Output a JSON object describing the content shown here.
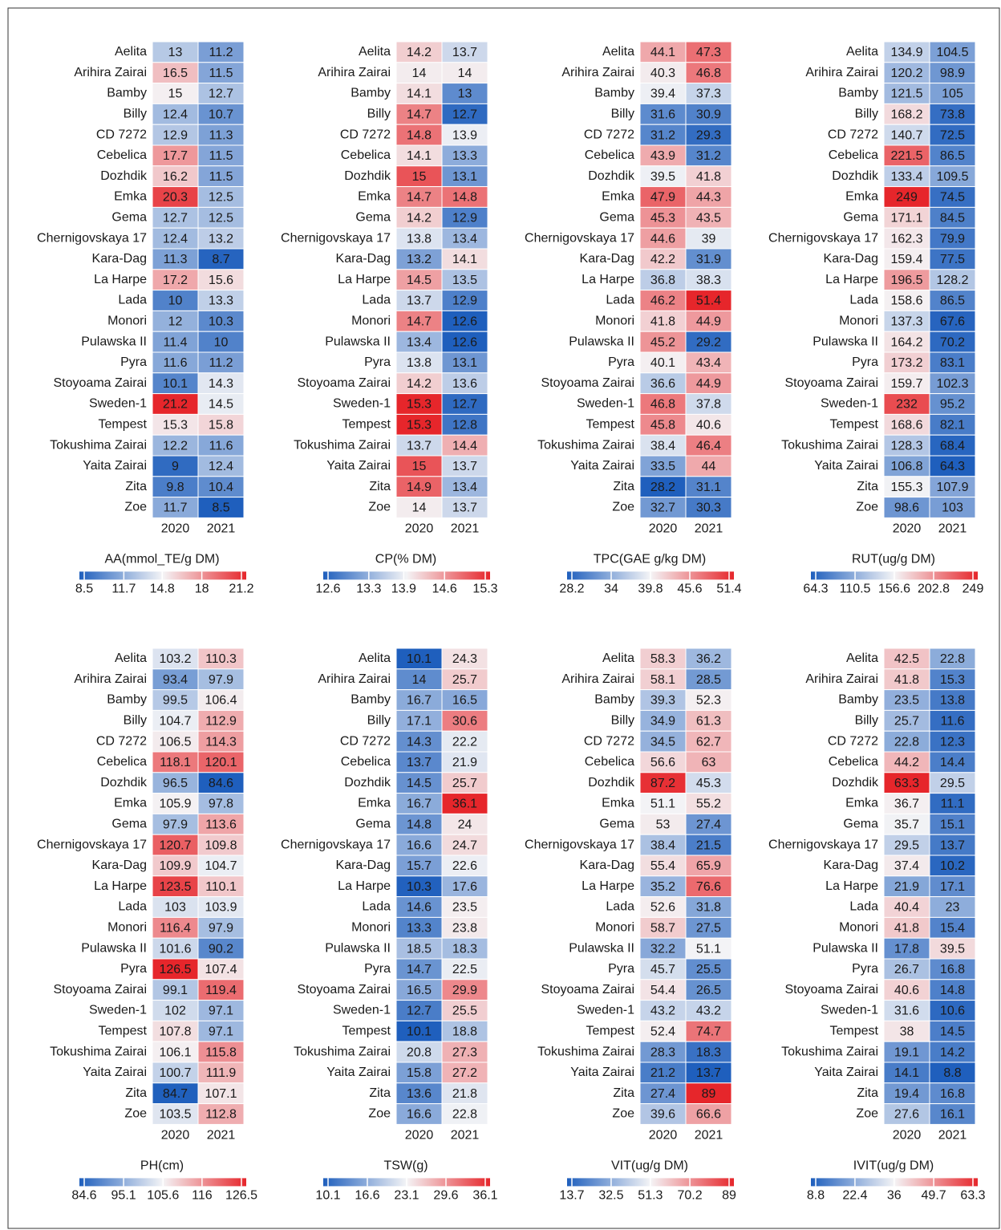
{
  "chart_data": [
    {
      "type": "heatmap",
      "title": "AA(mmol_TE/g DM)",
      "columns": [
        "2020",
        "2021"
      ],
      "rows": [
        "Aelita",
        "Arihira Zairai",
        "Bamby",
        "Billy",
        "CD 7272",
        "Cebelica",
        "Dozhdik",
        "Emka",
        "Gema",
        "Chernigovskaya 17",
        "Kara-Dag",
        "La Harpe",
        "Lada",
        "Monori",
        "Pulawska II",
        "Pyra",
        "Stoyoama Zairai",
        "Sweden-1",
        "Tempest",
        "Tokushima Zairai",
        "Yaita Zairai",
        "Zita",
        "Zoe"
      ],
      "values": [
        [
          13,
          11.2
        ],
        [
          16.5,
          11.5
        ],
        [
          15,
          12.7
        ],
        [
          12.4,
          10.7
        ],
        [
          12.9,
          11.3
        ],
        [
          17.7,
          11.5
        ],
        [
          16.2,
          11.5
        ],
        [
          20.3,
          12.5
        ],
        [
          12.7,
          12.5
        ],
        [
          12.4,
          13.2
        ],
        [
          11.3,
          8.7
        ],
        [
          17.2,
          15.6
        ],
        [
          10,
          13.3
        ],
        [
          12,
          10.3
        ],
        [
          11.4,
          10
        ],
        [
          11.6,
          11.2
        ],
        [
          10.1,
          14.3
        ],
        [
          21.2,
          14.5
        ],
        [
          15.3,
          15.8
        ],
        [
          12.2,
          11.6
        ],
        [
          9,
          12.4
        ],
        [
          9.8,
          10.4
        ],
        [
          11.7,
          8.5
        ]
      ],
      "clim": [
        8.5,
        21.2
      ],
      "cticks": [
        8.5,
        11.7,
        14.8,
        18,
        21.2
      ],
      "colormap": [
        "#1f5fbd",
        "#f4f4f6",
        "#e6262b"
      ]
    },
    {
      "type": "heatmap",
      "title": "CP(% DM)",
      "columns": [
        "2020",
        "2021"
      ],
      "rows": [
        "Aelita",
        "Arihira Zairai",
        "Bamby",
        "Billy",
        "CD 7272",
        "Cebelica",
        "Dozhdik",
        "Emka",
        "Gema",
        "Chernigovskaya 17",
        "Kara-Dag",
        "La Harpe",
        "Lada",
        "Monori",
        "Pulawska II",
        "Pyra",
        "Stoyoama Zairai",
        "Sweden-1",
        "Tempest",
        "Tokushima Zairai",
        "Yaita Zairai",
        "Zita",
        "Zoe"
      ],
      "values": [
        [
          14.2,
          13.7
        ],
        [
          14,
          14
        ],
        [
          14.1,
          13
        ],
        [
          14.7,
          12.7
        ],
        [
          14.8,
          13.9
        ],
        [
          14.1,
          13.3
        ],
        [
          15,
          13.1
        ],
        [
          14.7,
          14.8
        ],
        [
          14.2,
          12.9
        ],
        [
          13.8,
          13.4
        ],
        [
          13.2,
          14.1
        ],
        [
          14.5,
          13.5
        ],
        [
          13.7,
          12.9
        ],
        [
          14.7,
          12.6
        ],
        [
          13.4,
          12.6
        ],
        [
          13.8,
          13.1
        ],
        [
          14.2,
          13.6
        ],
        [
          15.3,
          12.7
        ],
        [
          15.3,
          12.8
        ],
        [
          13.7,
          14.4
        ],
        [
          15,
          13.7
        ],
        [
          14.9,
          13.4
        ],
        [
          14,
          13.7
        ]
      ],
      "clim": [
        12.6,
        15.3
      ],
      "cticks": [
        12.6,
        13.3,
        13.9,
        14.6,
        15.3
      ],
      "colormap": [
        "#1f5fbd",
        "#f4f4f6",
        "#e6262b"
      ]
    },
    {
      "type": "heatmap",
      "title": "TPC(GAE g/kg DM)",
      "columns": [
        "2020",
        "2021"
      ],
      "rows": [
        "Aelita",
        "Arihira Zairai",
        "Bamby",
        "Billy",
        "CD 7272",
        "Cebelica",
        "Dozhdik",
        "Emka",
        "Gema",
        "Chernigovskaya 17",
        "Kara-Dag",
        "La Harpe",
        "Lada",
        "Monori",
        "Pulawska II",
        "Pyra",
        "Stoyoama Zairai",
        "Sweden-1",
        "Tempest",
        "Tokushima Zairai",
        "Yaita Zairai",
        "Zita",
        "Zoe"
      ],
      "values": [
        [
          44.1,
          47.3
        ],
        [
          40.3,
          46.8
        ],
        [
          39.4,
          37.3
        ],
        [
          31.6,
          30.9
        ],
        [
          31.2,
          29.3
        ],
        [
          43.9,
          31.2
        ],
        [
          39.5,
          41.8
        ],
        [
          47.9,
          44.3
        ],
        [
          45.3,
          43.5
        ],
        [
          44.6,
          39
        ],
        [
          42.2,
          31.9
        ],
        [
          36.8,
          38.3
        ],
        [
          46.2,
          51.4
        ],
        [
          41.8,
          44.9
        ],
        [
          45.2,
          29.2
        ],
        [
          40.1,
          43.4
        ],
        [
          36.6,
          44.9
        ],
        [
          46.8,
          37.8
        ],
        [
          45.8,
          40.6
        ],
        [
          38.4,
          46.4
        ],
        [
          33.5,
          44
        ],
        [
          28.2,
          31.1
        ],
        [
          32.7,
          30.3
        ]
      ],
      "clim": [
        28.2,
        51.4
      ],
      "cticks": [
        28.2,
        34,
        39.8,
        45.6,
        51.4
      ],
      "colormap": [
        "#1f5fbd",
        "#f4f4f6",
        "#e6262b"
      ]
    },
    {
      "type": "heatmap",
      "title": "RUT(ug/g DM)",
      "columns": [
        "2020",
        "2021"
      ],
      "rows": [
        "Aelita",
        "Arihira Zairai",
        "Bamby",
        "Billy",
        "CD 7272",
        "Cebelica",
        "Dozhdik",
        "Emka",
        "Gema",
        "Chernigovskaya 17",
        "Kara-Dag",
        "La Harpe",
        "Lada",
        "Monori",
        "Pulawska II",
        "Pyra",
        "Stoyoama Zairai",
        "Sweden-1",
        "Tempest",
        "Tokushima Zairai",
        "Yaita Zairai",
        "Zita",
        "Zoe"
      ],
      "values": [
        [
          134.9,
          104.5
        ],
        [
          120.2,
          98.9
        ],
        [
          121.5,
          105
        ],
        [
          168.2,
          73.8
        ],
        [
          140.7,
          72.5
        ],
        [
          221.5,
          86.5
        ],
        [
          133.4,
          109.5
        ],
        [
          249,
          74.5
        ],
        [
          171.1,
          84.5
        ],
        [
          162.3,
          79.9
        ],
        [
          159.4,
          77.5
        ],
        [
          196.5,
          128.2
        ],
        [
          158.6,
          86.5
        ],
        [
          137.3,
          67.6
        ],
        [
          164.2,
          70.2
        ],
        [
          173.2,
          83.1
        ],
        [
          159.7,
          102.3
        ],
        [
          232,
          95.2
        ],
        [
          168.6,
          82.1
        ],
        [
          128.3,
          68.4
        ],
        [
          106.8,
          64.3
        ],
        [
          155.3,
          107.9
        ],
        [
          98.6,
          103
        ]
      ],
      "clim": [
        64.3,
        249
      ],
      "cticks": [
        64.3,
        110.5,
        156.6,
        202.8,
        249
      ],
      "colormap": [
        "#1f5fbd",
        "#f4f4f6",
        "#e6262b"
      ]
    },
    {
      "type": "heatmap",
      "title": "PH(cm)",
      "columns": [
        "2020",
        "2021"
      ],
      "rows": [
        "Aelita",
        "Arihira Zairai",
        "Bamby",
        "Billy",
        "CD 7272",
        "Cebelica",
        "Dozhdik",
        "Emka",
        "Gema",
        "Chernigovskaya 17",
        "Kara-Dag",
        "La Harpe",
        "Lada",
        "Monori",
        "Pulawska II",
        "Pyra",
        "Stoyoama Zairai",
        "Sweden-1",
        "Tempest",
        "Tokushima Zairai",
        "Yaita Zairai",
        "Zita",
        "Zoe"
      ],
      "values": [
        [
          103.2,
          110.3
        ],
        [
          93.4,
          97.9
        ],
        [
          99.5,
          106.4
        ],
        [
          104.7,
          112.9
        ],
        [
          106.5,
          114.3
        ],
        [
          118.1,
          120.1
        ],
        [
          96.5,
          84.6
        ],
        [
          105.9,
          97.8
        ],
        [
          97.9,
          113.6
        ],
        [
          120.7,
          109.8
        ],
        [
          109.9,
          104.7
        ],
        [
          123.5,
          110.1
        ],
        [
          103,
          103.9
        ],
        [
          116.4,
          97.9
        ],
        [
          101.6,
          90.2
        ],
        [
          126.5,
          107.4
        ],
        [
          99.1,
          119.4
        ],
        [
          102,
          97.1
        ],
        [
          107.8,
          97.1
        ],
        [
          106.1,
          115.8
        ],
        [
          100.7,
          111.9
        ],
        [
          84.7,
          107.1
        ],
        [
          103.5,
          112.8
        ]
      ],
      "clim": [
        84.6,
        126.5
      ],
      "cticks": [
        84.6,
        95.1,
        105.6,
        116,
        126.5
      ],
      "colormap": [
        "#1f5fbd",
        "#f4f4f6",
        "#e6262b"
      ]
    },
    {
      "type": "heatmap",
      "title": "TSW(g)",
      "columns": [
        "2020",
        "2021"
      ],
      "rows": [
        "Aelita",
        "Arihira Zairai",
        "Bamby",
        "Billy",
        "CD 7272",
        "Cebelica",
        "Dozhdik",
        "Emka",
        "Gema",
        "Chernigovskaya 17",
        "Kara-Dag",
        "La Harpe",
        "Lada",
        "Monori",
        "Pulawska II",
        "Pyra",
        "Stoyoama Zairai",
        "Sweden-1",
        "Tempest",
        "Tokushima Zairai",
        "Yaita Zairai",
        "Zita",
        "Zoe"
      ],
      "values": [
        [
          10.1,
          24.3
        ],
        [
          14,
          25.7
        ],
        [
          16.7,
          16.5
        ],
        [
          17.1,
          30.6
        ],
        [
          14.3,
          22.2
        ],
        [
          13.7,
          21.9
        ],
        [
          14.5,
          25.7
        ],
        [
          16.7,
          36.1
        ],
        [
          14.8,
          24
        ],
        [
          16.6,
          24.7
        ],
        [
          15.7,
          22.6
        ],
        [
          10.3,
          17.6
        ],
        [
          14.6,
          23.5
        ],
        [
          13.3,
          23.8
        ],
        [
          18.5,
          18.3
        ],
        [
          14.7,
          22.5
        ],
        [
          16.5,
          29.9
        ],
        [
          12.7,
          25.5
        ],
        [
          10.1,
          18.8
        ],
        [
          20.8,
          27.3
        ],
        [
          15.8,
          27.2
        ],
        [
          13.6,
          21.8
        ],
        [
          16.6,
          22.8
        ]
      ],
      "clim": [
        10.1,
        36.1
      ],
      "cticks": [
        10.1,
        16.6,
        23.1,
        29.6,
        36.1
      ],
      "colormap": [
        "#1f5fbd",
        "#f4f4f6",
        "#e6262b"
      ]
    },
    {
      "type": "heatmap",
      "title": "VIT(ug/g DM)",
      "columns": [
        "2020",
        "2021"
      ],
      "rows": [
        "Aelita",
        "Arihira Zairai",
        "Bamby",
        "Billy",
        "CD 7272",
        "Cebelica",
        "Dozhdik",
        "Emka",
        "Gema",
        "Chernigovskaya 17",
        "Kara-Dag",
        "La Harpe",
        "Lada",
        "Monori",
        "Pulawska II",
        "Pyra",
        "Stoyoama Zairai",
        "Sweden-1",
        "Tempest",
        "Tokushima Zairai",
        "Yaita Zairai",
        "Zita",
        "Zoe"
      ],
      "values": [
        [
          58.3,
          36.2
        ],
        [
          58.1,
          28.5
        ],
        [
          39.3,
          52.3
        ],
        [
          34.9,
          61.3
        ],
        [
          34.5,
          62.7
        ],
        [
          56.6,
          63
        ],
        [
          87.2,
          45.3
        ],
        [
          51.1,
          55.2
        ],
        [
          53,
          27.4
        ],
        [
          38.4,
          21.5
        ],
        [
          55.4,
          65.9
        ],
        [
          35.2,
          76.6
        ],
        [
          52.6,
          31.8
        ],
        [
          58.7,
          27.5
        ],
        [
          32.2,
          51.1
        ],
        [
          45.7,
          25.5
        ],
        [
          54.4,
          26.5
        ],
        [
          43.2,
          43.2
        ],
        [
          52.4,
          74.7
        ],
        [
          28.3,
          18.3
        ],
        [
          21.2,
          13.7
        ],
        [
          27.4,
          89
        ],
        [
          39.6,
          66.6
        ]
      ],
      "clim": [
        13.7,
        89
      ],
      "cticks": [
        13.7,
        32.5,
        51.3,
        70.2,
        89
      ],
      "colormap": [
        "#1f5fbd",
        "#f4f4f6",
        "#e6262b"
      ]
    },
    {
      "type": "heatmap",
      "title": "IVIT(ug/g DM)",
      "columns": [
        "2020",
        "2021"
      ],
      "rows": [
        "Aelita",
        "Arihira Zairai",
        "Bamby",
        "Billy",
        "CD 7272",
        "Cebelica",
        "Dozhdik",
        "Emka",
        "Gema",
        "Chernigovskaya 17",
        "Kara-Dag",
        "La Harpe",
        "Lada",
        "Monori",
        "Pulawska II",
        "Pyra",
        "Stoyoama Zairai",
        "Sweden-1",
        "Tempest",
        "Tokushima Zairai",
        "Yaita Zairai",
        "Zita",
        "Zoe"
      ],
      "values": [
        [
          42.5,
          22.8
        ],
        [
          41.8,
          15.3
        ],
        [
          23.5,
          13.8
        ],
        [
          25.7,
          11.6
        ],
        [
          22.8,
          12.3
        ],
        [
          44.2,
          14.4
        ],
        [
          63.3,
          29.5
        ],
        [
          36.7,
          11.1
        ],
        [
          35.7,
          15.1
        ],
        [
          29.5,
          13.7
        ],
        [
          37.4,
          10.2
        ],
        [
          21.9,
          17.1
        ],
        [
          40.4,
          23
        ],
        [
          41.8,
          15.4
        ],
        [
          17.8,
          39.5
        ],
        [
          26.7,
          16.8
        ],
        [
          40.6,
          14.8
        ],
        [
          31.6,
          10.6
        ],
        [
          38,
          14.5
        ],
        [
          19.1,
          14.2
        ],
        [
          14.1,
          8.8
        ],
        [
          19.4,
          16.8
        ],
        [
          27.6,
          16.1
        ]
      ],
      "clim": [
        8.8,
        63.3
      ],
      "cticks": [
        8.8,
        22.4,
        36,
        49.7,
        63.3
      ],
      "colormap": [
        "#1f5fbd",
        "#f4f4f6",
        "#e6262b"
      ]
    }
  ]
}
